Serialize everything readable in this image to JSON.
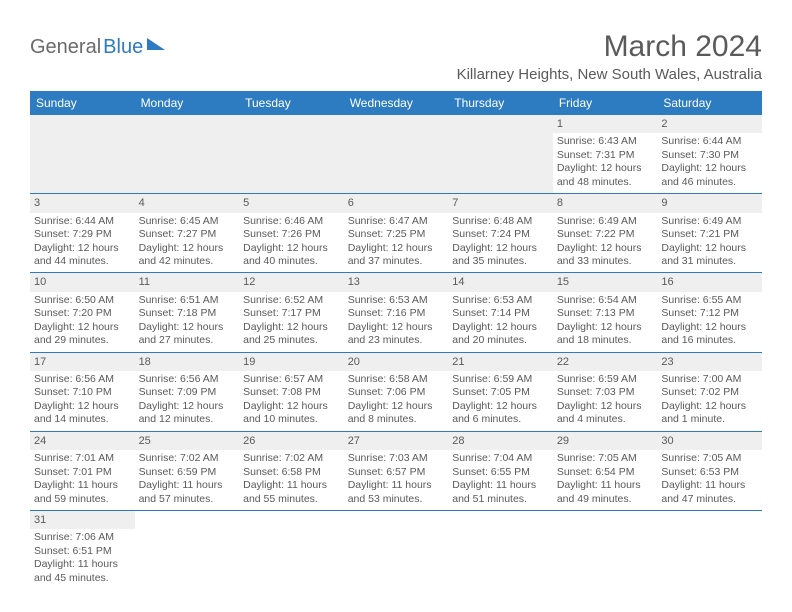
{
  "logo": {
    "word1": "General",
    "word2": "Blue"
  },
  "title": "March 2024",
  "location": "Killarney Heights, New South Wales, Australia",
  "colors": {
    "header_bg": "#2d7cc1",
    "header_fg": "#ffffff",
    "daynum_bg": "#efefef",
    "row_border": "#2d7cc1",
    "text": "#5a5a5a",
    "logo_blue": "#2d7cc1",
    "page_bg": "#ffffff"
  },
  "weekdays": [
    "Sunday",
    "Monday",
    "Tuesday",
    "Wednesday",
    "Thursday",
    "Friday",
    "Saturday"
  ],
  "grid": [
    [
      null,
      null,
      null,
      null,
      null,
      {
        "n": "1",
        "sr": "Sunrise: 6:43 AM",
        "ss": "Sunset: 7:31 PM",
        "d1": "Daylight: 12 hours",
        "d2": "and 48 minutes."
      },
      {
        "n": "2",
        "sr": "Sunrise: 6:44 AM",
        "ss": "Sunset: 7:30 PM",
        "d1": "Daylight: 12 hours",
        "d2": "and 46 minutes."
      }
    ],
    [
      {
        "n": "3",
        "sr": "Sunrise: 6:44 AM",
        "ss": "Sunset: 7:29 PM",
        "d1": "Daylight: 12 hours",
        "d2": "and 44 minutes."
      },
      {
        "n": "4",
        "sr": "Sunrise: 6:45 AM",
        "ss": "Sunset: 7:27 PM",
        "d1": "Daylight: 12 hours",
        "d2": "and 42 minutes."
      },
      {
        "n": "5",
        "sr": "Sunrise: 6:46 AM",
        "ss": "Sunset: 7:26 PM",
        "d1": "Daylight: 12 hours",
        "d2": "and 40 minutes."
      },
      {
        "n": "6",
        "sr": "Sunrise: 6:47 AM",
        "ss": "Sunset: 7:25 PM",
        "d1": "Daylight: 12 hours",
        "d2": "and 37 minutes."
      },
      {
        "n": "7",
        "sr": "Sunrise: 6:48 AM",
        "ss": "Sunset: 7:24 PM",
        "d1": "Daylight: 12 hours",
        "d2": "and 35 minutes."
      },
      {
        "n": "8",
        "sr": "Sunrise: 6:49 AM",
        "ss": "Sunset: 7:22 PM",
        "d1": "Daylight: 12 hours",
        "d2": "and 33 minutes."
      },
      {
        "n": "9",
        "sr": "Sunrise: 6:49 AM",
        "ss": "Sunset: 7:21 PM",
        "d1": "Daylight: 12 hours",
        "d2": "and 31 minutes."
      }
    ],
    [
      {
        "n": "10",
        "sr": "Sunrise: 6:50 AM",
        "ss": "Sunset: 7:20 PM",
        "d1": "Daylight: 12 hours",
        "d2": "and 29 minutes."
      },
      {
        "n": "11",
        "sr": "Sunrise: 6:51 AM",
        "ss": "Sunset: 7:18 PM",
        "d1": "Daylight: 12 hours",
        "d2": "and 27 minutes."
      },
      {
        "n": "12",
        "sr": "Sunrise: 6:52 AM",
        "ss": "Sunset: 7:17 PM",
        "d1": "Daylight: 12 hours",
        "d2": "and 25 minutes."
      },
      {
        "n": "13",
        "sr": "Sunrise: 6:53 AM",
        "ss": "Sunset: 7:16 PM",
        "d1": "Daylight: 12 hours",
        "d2": "and 23 minutes."
      },
      {
        "n": "14",
        "sr": "Sunrise: 6:53 AM",
        "ss": "Sunset: 7:14 PM",
        "d1": "Daylight: 12 hours",
        "d2": "and 20 minutes."
      },
      {
        "n": "15",
        "sr": "Sunrise: 6:54 AM",
        "ss": "Sunset: 7:13 PM",
        "d1": "Daylight: 12 hours",
        "d2": "and 18 minutes."
      },
      {
        "n": "16",
        "sr": "Sunrise: 6:55 AM",
        "ss": "Sunset: 7:12 PM",
        "d1": "Daylight: 12 hours",
        "d2": "and 16 minutes."
      }
    ],
    [
      {
        "n": "17",
        "sr": "Sunrise: 6:56 AM",
        "ss": "Sunset: 7:10 PM",
        "d1": "Daylight: 12 hours",
        "d2": "and 14 minutes."
      },
      {
        "n": "18",
        "sr": "Sunrise: 6:56 AM",
        "ss": "Sunset: 7:09 PM",
        "d1": "Daylight: 12 hours",
        "d2": "and 12 minutes."
      },
      {
        "n": "19",
        "sr": "Sunrise: 6:57 AM",
        "ss": "Sunset: 7:08 PM",
        "d1": "Daylight: 12 hours",
        "d2": "and 10 minutes."
      },
      {
        "n": "20",
        "sr": "Sunrise: 6:58 AM",
        "ss": "Sunset: 7:06 PM",
        "d1": "Daylight: 12 hours",
        "d2": "and 8 minutes."
      },
      {
        "n": "21",
        "sr": "Sunrise: 6:59 AM",
        "ss": "Sunset: 7:05 PM",
        "d1": "Daylight: 12 hours",
        "d2": "and 6 minutes."
      },
      {
        "n": "22",
        "sr": "Sunrise: 6:59 AM",
        "ss": "Sunset: 7:03 PM",
        "d1": "Daylight: 12 hours",
        "d2": "and 4 minutes."
      },
      {
        "n": "23",
        "sr": "Sunrise: 7:00 AM",
        "ss": "Sunset: 7:02 PM",
        "d1": "Daylight: 12 hours",
        "d2": "and 1 minute."
      }
    ],
    [
      {
        "n": "24",
        "sr": "Sunrise: 7:01 AM",
        "ss": "Sunset: 7:01 PM",
        "d1": "Daylight: 11 hours",
        "d2": "and 59 minutes."
      },
      {
        "n": "25",
        "sr": "Sunrise: 7:02 AM",
        "ss": "Sunset: 6:59 PM",
        "d1": "Daylight: 11 hours",
        "d2": "and 57 minutes."
      },
      {
        "n": "26",
        "sr": "Sunrise: 7:02 AM",
        "ss": "Sunset: 6:58 PM",
        "d1": "Daylight: 11 hours",
        "d2": "and 55 minutes."
      },
      {
        "n": "27",
        "sr": "Sunrise: 7:03 AM",
        "ss": "Sunset: 6:57 PM",
        "d1": "Daylight: 11 hours",
        "d2": "and 53 minutes."
      },
      {
        "n": "28",
        "sr": "Sunrise: 7:04 AM",
        "ss": "Sunset: 6:55 PM",
        "d1": "Daylight: 11 hours",
        "d2": "and 51 minutes."
      },
      {
        "n": "29",
        "sr": "Sunrise: 7:05 AM",
        "ss": "Sunset: 6:54 PM",
        "d1": "Daylight: 11 hours",
        "d2": "and 49 minutes."
      },
      {
        "n": "30",
        "sr": "Sunrise: 7:05 AM",
        "ss": "Sunset: 6:53 PM",
        "d1": "Daylight: 11 hours",
        "d2": "and 47 minutes."
      }
    ],
    [
      {
        "n": "31",
        "sr": "Sunrise: 7:06 AM",
        "ss": "Sunset: 6:51 PM",
        "d1": "Daylight: 11 hours",
        "d2": "and 45 minutes."
      },
      null,
      null,
      null,
      null,
      null,
      null
    ]
  ]
}
